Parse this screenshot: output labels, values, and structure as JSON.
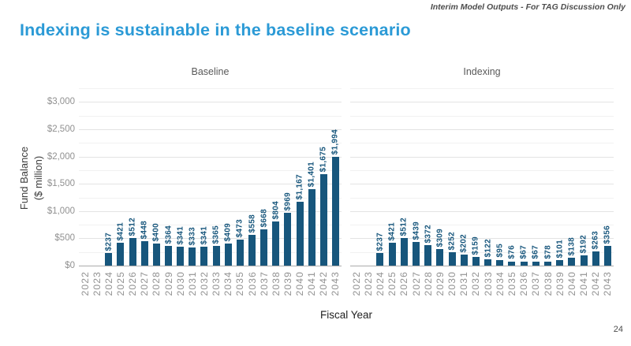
{
  "page": {
    "disclaimer": "Interim Model Outputs - For TAG Discussion Only",
    "title": "Indexing is sustainable in the baseline scenario",
    "page_number": "24"
  },
  "colors": {
    "title": "#2B9AD6",
    "bar": "#17567C",
    "bar_label": "#17567C",
    "tick_text": "#919191",
    "panel_title": "#595959",
    "grid_major": "#E3E3E3",
    "grid_minor": "#F1F1F1",
    "axis_line": "#ABABAB"
  },
  "chart_data": {
    "type": "bar",
    "xlabel": "Fiscal Year",
    "ylabel": "Fund Balance ($ million)",
    "ylabel_lines": [
      "Fund Balance",
      "($ million)"
    ],
    "ylim": [
      0,
      3250
    ],
    "y_tick_step": 500,
    "y_tick_labels": [
      "$0",
      "$500",
      "$1,000",
      "$1,500",
      "$2,000",
      "$2,500",
      "$3,000"
    ],
    "grid": "horizontal; minor every $250, major every $500",
    "legend": "none",
    "categories": [
      "2022",
      "2023",
      "2024",
      "2025",
      "2026",
      "2027",
      "2028",
      "2029",
      "2030",
      "2031",
      "2032",
      "2033",
      "2034",
      "2035",
      "2036",
      "2037",
      "2038",
      "2039",
      "2040",
      "2041",
      "2042",
      "2043"
    ],
    "panels": [
      {
        "title": "Baseline",
        "values": [
          null,
          null,
          237,
          421,
          512,
          448,
          400,
          364,
          341,
          333,
          341,
          365,
          409,
          473,
          558,
          668,
          804,
          969,
          1167,
          1401,
          1675,
          1994
        ],
        "labels": [
          null,
          null,
          "$237",
          "$421",
          "$512",
          "$448",
          "$400",
          "$364",
          "$341",
          "$333",
          "$341",
          "$365",
          "$409",
          "$473",
          "$558",
          "$668",
          "$804",
          "$969",
          "$1,167",
          "$1,401",
          "$1,675",
          "$1,994"
        ]
      },
      {
        "title": "Indexing",
        "values": [
          null,
          null,
          237,
          421,
          512,
          439,
          372,
          309,
          252,
          202,
          159,
          122,
          95,
          76,
          67,
          67,
          78,
          101,
          138,
          192,
          263,
          356
        ],
        "labels": [
          null,
          null,
          "$237",
          "$421",
          "$512",
          "$439",
          "$372",
          "$309",
          "$252",
          "$202",
          "$159",
          "$122",
          "$95",
          "$76",
          "$67",
          "$67",
          "$78",
          "$101",
          "$138",
          "$192",
          "$263",
          "$356"
        ]
      }
    ]
  }
}
